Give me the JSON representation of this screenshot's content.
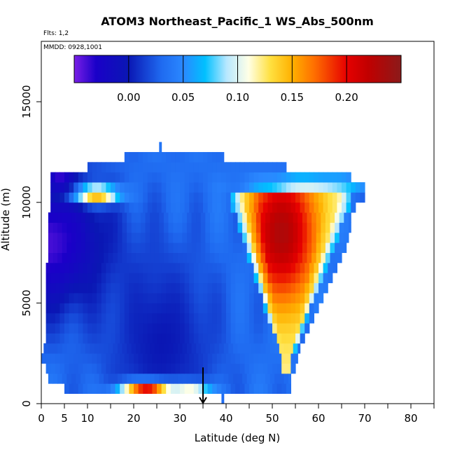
{
  "chart_data": {
    "type": "heatmap",
    "title": "ATOM3 Northeast_Pacific_1 WS_Abs_500nm",
    "flights_label": "Flts: 1,2",
    "dates_label": "MMDD: 0928,1001",
    "xlabel": "Latitude (deg N)",
    "ylabel": "Altitude (m)",
    "xlim": [
      0,
      85
    ],
    "ylim": [
      0,
      18000
    ],
    "x_ticks": [
      0,
      5,
      10,
      20,
      30,
      40,
      50,
      60,
      70,
      80
    ],
    "x_tick_labels": [
      "0",
      "5",
      "10",
      "20",
      "30",
      "40",
      "50",
      "60",
      "70",
      "80"
    ],
    "x_minor_ticks": [
      15,
      25,
      35,
      45,
      55,
      65,
      75,
      85
    ],
    "y_ticks": [
      0,
      5000,
      10000,
      15000
    ],
    "y_tick_labels": [
      "0",
      "5000",
      "10000",
      "15000"
    ],
    "colorbar": {
      "range": [
        -0.05,
        0.25
      ],
      "ticks": [
        0.0,
        0.05,
        0.1,
        0.15,
        0.2
      ],
      "tick_labels": [
        "0.00",
        "0.05",
        "0.10",
        "0.15",
        "0.20"
      ],
      "stops": [
        {
          "value": -0.05,
          "color": "#7a1fe6"
        },
        {
          "value": -0.03,
          "color": "#1a00c8"
        },
        {
          "value": 0.0,
          "color": "#0a17b4"
        },
        {
          "value": 0.03,
          "color": "#1f6af0"
        },
        {
          "value": 0.05,
          "color": "#2a88ff"
        },
        {
          "value": 0.07,
          "color": "#00c0ff"
        },
        {
          "value": 0.09,
          "color": "#b8e8ff"
        },
        {
          "value": 0.11,
          "color": "#ffffe6"
        },
        {
          "value": 0.13,
          "color": "#ffe040"
        },
        {
          "value": 0.15,
          "color": "#ffb000"
        },
        {
          "value": 0.17,
          "color": "#ff7000"
        },
        {
          "value": 0.2,
          "color": "#e60000"
        },
        {
          "value": 0.22,
          "color": "#c00000"
        },
        {
          "value": 0.25,
          "color": "#8b1a1a"
        }
      ]
    },
    "altitude_bins": [
      {
        "y0": 0,
        "y1": 500,
        "lat_min": 39,
        "lat_max": 39.5
      },
      {
        "y0": 500,
        "y1": 1000,
        "lat_min": 5,
        "lat_max": 54
      },
      {
        "y0": 1000,
        "y1": 1500,
        "lat_min": 1.5,
        "lat_max": 54
      },
      {
        "y0": 1500,
        "y1": 2000,
        "lat_min": 1,
        "lat_max": 55
      },
      {
        "y0": 2000,
        "y1": 2500,
        "lat_min": 0,
        "lat_max": 55.5
      },
      {
        "y0": 2500,
        "y1": 3000,
        "lat_min": 0.5,
        "lat_max": 56
      },
      {
        "y0": 3000,
        "y1": 3500,
        "lat_min": 1,
        "lat_max": 57
      },
      {
        "y0": 3500,
        "y1": 4000,
        "lat_min": 1,
        "lat_max": 58
      },
      {
        "y0": 4000,
        "y1": 4500,
        "lat_min": 1,
        "lat_max": 59
      },
      {
        "y0": 4500,
        "y1": 5000,
        "lat_min": 1,
        "lat_max": 60
      },
      {
        "y0": 5000,
        "y1": 5500,
        "lat_min": 1,
        "lat_max": 61
      },
      {
        "y0": 5500,
        "y1": 6000,
        "lat_min": 1,
        "lat_max": 62
      },
      {
        "y0": 6000,
        "y1": 6500,
        "lat_min": 1,
        "lat_max": 63
      },
      {
        "y0": 6500,
        "y1": 7000,
        "lat_min": 1,
        "lat_max": 64
      },
      {
        "y0": 7000,
        "y1": 7500,
        "lat_min": 1.5,
        "lat_max": 65
      },
      {
        "y0": 7500,
        "y1": 8000,
        "lat_min": 1.5,
        "lat_max": 66
      },
      {
        "y0": 8000,
        "y1": 8500,
        "lat_min": 1.5,
        "lat_max": 66.5
      },
      {
        "y0": 8500,
        "y1": 9000,
        "lat_min": 1.5,
        "lat_max": 67
      },
      {
        "y0": 9000,
        "y1": 9500,
        "lat_min": 1.5,
        "lat_max": 67
      },
      {
        "y0": 9500,
        "y1": 10000,
        "lat_min": 2,
        "lat_max": 68
      },
      {
        "y0": 10000,
        "y1": 10500,
        "lat_min": 2,
        "lat_max": 70
      },
      {
        "y0": 10500,
        "y1": 11000,
        "lat_min": 2,
        "lat_max": 70
      },
      {
        "y0": 11000,
        "y1": 11500,
        "lat_min": 2,
        "lat_max": 67
      },
      {
        "y0": 11500,
        "y1": 12000,
        "lat_min": 10,
        "lat_max": 53
      },
      {
        "y0": 12000,
        "y1": 12500,
        "lat_min": 18,
        "lat_max": 39.5
      },
      {
        "y0": 12500,
        "y1": 13000,
        "lat_min": 25.5,
        "lat_max": 26
      }
    ],
    "features": [
      {
        "lat": 1,
        "alt": 8000,
        "lat_sigma": 10,
        "alt_sigma": 2500,
        "value": -0.04
      },
      {
        "lat": 26,
        "alt": 3000,
        "lat_sigma": 9,
        "alt_sigma": 3500,
        "value": 0.0
      },
      {
        "lat": 12,
        "alt": 10400,
        "lat_sigma": 3.5,
        "alt_sigma": 300,
        "value": 0.16
      },
      {
        "lat": 4,
        "alt": 11100,
        "lat_sigma": 2,
        "alt_sigma": 300,
        "value": -0.04
      },
      {
        "lat": 23,
        "alt": 750,
        "lat_sigma": 4,
        "alt_sigma": 250,
        "value": 0.2
      },
      {
        "lat": 32,
        "alt": 750,
        "lat_sigma": 3.5,
        "alt_sigma": 250,
        "value": 0.11
      },
      {
        "lat": 58,
        "alt": 10900,
        "lat_sigma": 8,
        "alt_sigma": 250,
        "value": 0.11
      }
    ],
    "plume": {
      "apex_lat": 53,
      "apex_alt": 1500,
      "top_alt": 10000,
      "top_lat_min": 41,
      "top_lat_max": 67,
      "peak_lat": 52,
      "peak_alt": 8500,
      "peak_value": 0.23,
      "edge_value": 0.12
    },
    "marker": {
      "type": "arrow-down",
      "lat": 35,
      "alt_from": 1800,
      "alt_to": 0
    }
  }
}
